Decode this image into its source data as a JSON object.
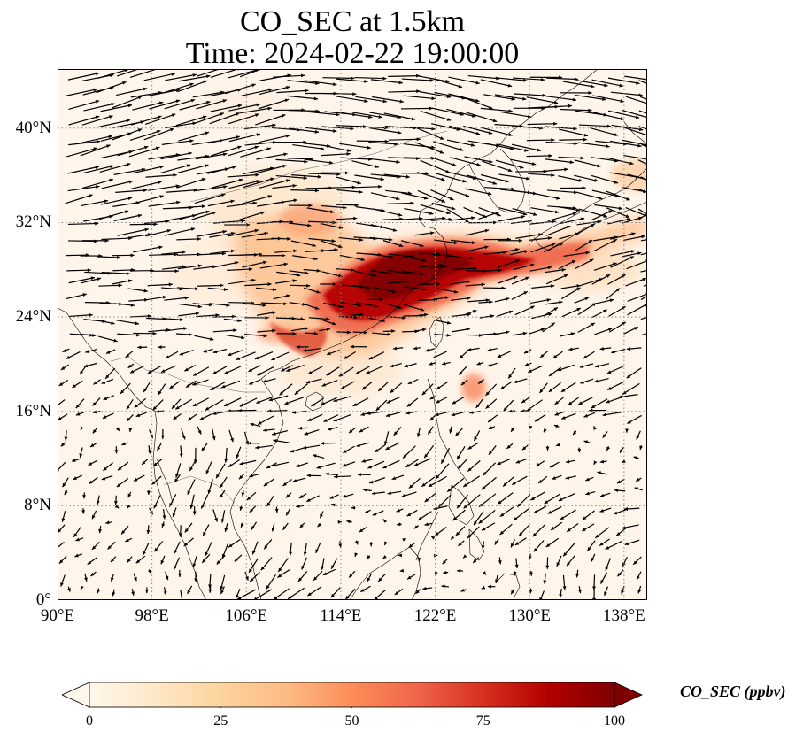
{
  "title": {
    "line1": "CO_SEC at 1.5km",
    "line2": "Time: 2024-02-22 19:00:00"
  },
  "map": {
    "projection": "PlateCarree",
    "lon_range": [
      90,
      140
    ],
    "lat_range": [
      0,
      45
    ],
    "gridlines": "dotted gray",
    "coastlines": true,
    "background_color": "#fff5eb",
    "wind_vectors": "black quiver arrows",
    "lat_ticks": [
      {
        "value": 0,
        "label": "0°"
      },
      {
        "value": 8,
        "label": "8°N"
      },
      {
        "value": 16,
        "label": "16°N"
      },
      {
        "value": 24,
        "label": "24°N"
      },
      {
        "value": 32,
        "label": "32°N"
      },
      {
        "value": 40,
        "label": "40°N"
      }
    ],
    "lon_ticks": [
      {
        "value": 90,
        "label": "90°E"
      },
      {
        "value": 98,
        "label": "98°E"
      },
      {
        "value": 106,
        "label": "106°E"
      },
      {
        "value": 114,
        "label": "114°E"
      },
      {
        "value": 122,
        "label": "122°E"
      },
      {
        "value": 130,
        "label": "130°E"
      },
      {
        "value": 138,
        "label": "138°E"
      }
    ]
  },
  "chart_data": {
    "type": "heatmap",
    "variable": "CO_SEC",
    "units": "ppbv",
    "level": "1.5km",
    "plume_band": [
      {
        "lon": 105,
        "lat": 29.5,
        "value": 32
      },
      {
        "lon": 108,
        "lat": 28.5,
        "value": 40
      },
      {
        "lon": 111,
        "lat": 27,
        "value": 70
      },
      {
        "lon": 114,
        "lat": 27.5,
        "value": 95
      },
      {
        "lon": 116.5,
        "lat": 28.5,
        "value": 100
      },
      {
        "lon": 119,
        "lat": 28.3,
        "value": 95
      },
      {
        "lon": 121,
        "lat": 28.3,
        "value": 85
      },
      {
        "lon": 124,
        "lat": 29,
        "value": 65
      },
      {
        "lon": 127,
        "lat": 29.8,
        "value": 45
      },
      {
        "lon": 130,
        "lat": 30.5,
        "value": 25
      },
      {
        "lon": 135,
        "lat": 34.5,
        "value": 15
      }
    ]
  },
  "colorbar": {
    "label": "CO_SEC (ppbv)",
    "colormap": "OrRd",
    "colors": [
      "#fff7ec",
      "#fee8c8",
      "#fdd49e",
      "#fdbb84",
      "#fc8d59",
      "#ef6548",
      "#d7301f",
      "#b30000",
      "#7f0000"
    ],
    "range": [
      0,
      100
    ],
    "extend": "both",
    "ticks": [
      {
        "value": 0,
        "label": "0"
      },
      {
        "value": 25,
        "label": "25"
      },
      {
        "value": 50,
        "label": "50"
      },
      {
        "value": 75,
        "label": "75"
      },
      {
        "value": 100,
        "label": "100"
      }
    ]
  }
}
